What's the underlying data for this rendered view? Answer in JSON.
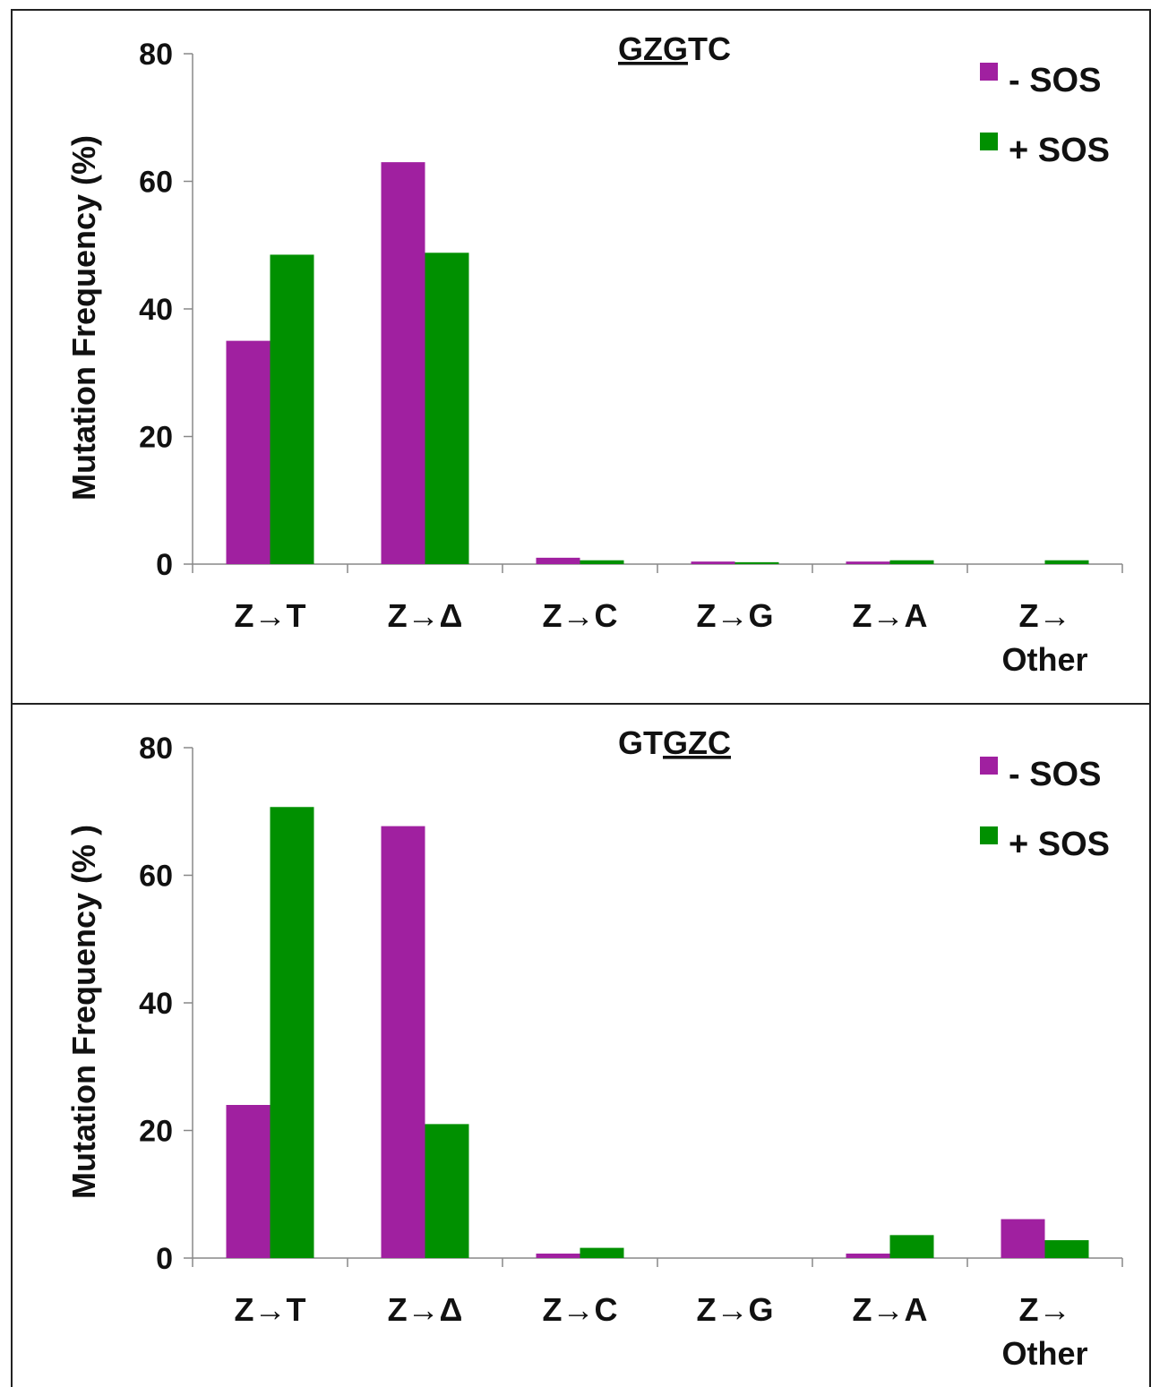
{
  "chart_data": [
    {
      "type": "bar",
      "title": "GZGTC",
      "title_underlined": "GZG",
      "ylabel": "Mutation Frequency (%)",
      "xlabel": "",
      "ylim": [
        0,
        80
      ],
      "yticks": [
        0,
        20,
        40,
        60,
        80
      ],
      "categories": [
        [
          "Z→T"
        ],
        [
          "Z→Δ"
        ],
        [
          "Z→C"
        ],
        [
          "Z→G"
        ],
        [
          "Z→A"
        ],
        [
          "Z→",
          "Other"
        ]
      ],
      "grid": false,
      "legend_position": "top-right",
      "series": [
        {
          "name": "- SOS",
          "color": "#a020a0",
          "values": [
            35,
            63,
            1,
            0.4,
            0.4,
            0
          ]
        },
        {
          "name": "+ SOS",
          "color": "#009000",
          "values": [
            48.5,
            48.8,
            0.6,
            0.3,
            0.6,
            0.6
          ]
        }
      ]
    },
    {
      "type": "bar",
      "title": "GTGZC",
      "title_underlined": "GZC",
      "ylabel": "Mutation Frequency (% )",
      "xlabel": "",
      "ylim": [
        0,
        80
      ],
      "yticks": [
        0,
        20,
        40,
        60,
        80
      ],
      "categories": [
        [
          "Z→T"
        ],
        [
          "Z→Δ"
        ],
        [
          "Z→C"
        ],
        [
          "Z→G"
        ],
        [
          "Z→A"
        ],
        [
          "Z→",
          "Other"
        ]
      ],
      "grid": false,
      "legend_position": "top-right",
      "series": [
        {
          "name": "- SOS",
          "color": "#a020a0",
          "values": [
            24,
            67.7,
            0.7,
            0,
            0.7,
            6.1
          ]
        },
        {
          "name": "+ SOS",
          "color": "#009000",
          "values": [
            70.7,
            21,
            1.6,
            0,
            3.6,
            2.8
          ]
        }
      ]
    }
  ]
}
